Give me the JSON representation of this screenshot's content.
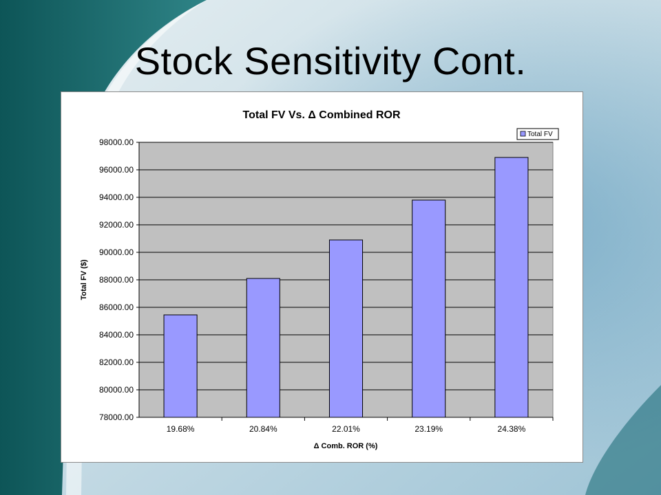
{
  "slide": {
    "title": "Stock Sensitivity Cont."
  },
  "colors": {
    "teal_dark": "#0e5a5c",
    "teal_light": "#5aa3a6",
    "plot_area": "#c0c0c0",
    "bar_fill": "#9999ff",
    "bar_stroke": "#000000"
  },
  "chart_data": {
    "type": "bar",
    "title": "Total FV Vs. Δ Combined ROR",
    "xlabel": "Δ Comb. ROR (%)",
    "ylabel": "Total FV ($)",
    "categories": [
      "19.68%",
      "20.84%",
      "22.01%",
      "23.19%",
      "24.38%"
    ],
    "series": [
      {
        "name": "Total FV",
        "values": [
          85450,
          88100,
          90900,
          93800,
          96900
        ]
      }
    ],
    "ylim": [
      78000,
      98000
    ],
    "yticks": [
      "78000.00",
      "80000.00",
      "82000.00",
      "84000.00",
      "86000.00",
      "88000.00",
      "90000.00",
      "92000.00",
      "94000.00",
      "96000.00",
      "98000.00"
    ],
    "grid": true,
    "legend_position": "top-right"
  }
}
